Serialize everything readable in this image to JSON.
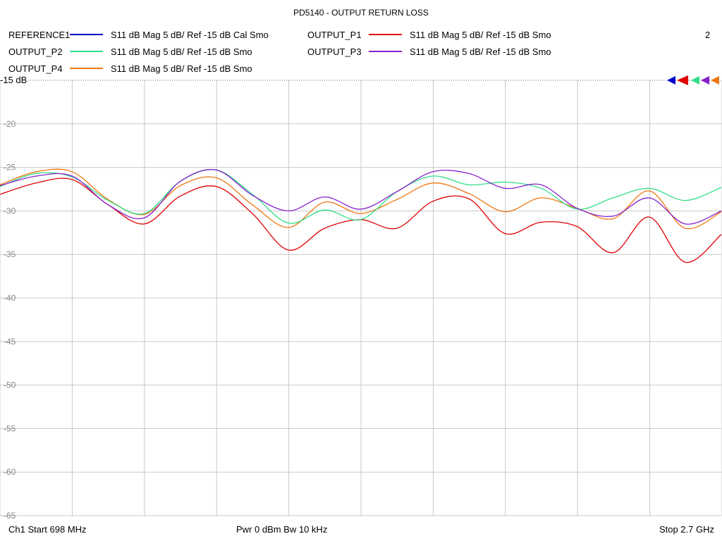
{
  "chart_data": {
    "type": "line",
    "title": "PD5140 - OUTPUT RETURN LOSS",
    "x_start": 698,
    "x_stop": 2700,
    "x_unit": "MHz",
    "ylim": [
      -65,
      -15
    ],
    "y_ticks": [
      -15,
      -20,
      -25,
      -30,
      -35,
      -40,
      -45,
      -50,
      -55,
      -60,
      -65
    ],
    "y_tick_labels": [
      "-15 dB",
      "-20",
      "-25",
      "-30",
      "-35",
      "-40",
      "-45",
      "-50",
      "-55",
      "-60",
      "-65"
    ],
    "grid": true,
    "legend_position": "top",
    "channel_number": "2",
    "x": [
      698,
      798,
      898,
      998,
      1098,
      1198,
      1298,
      1398,
      1498,
      1598,
      1698,
      1798,
      1898,
      1998,
      2098,
      2198,
      2298,
      2398,
      2498,
      2598,
      2698
    ],
    "series": [
      {
        "name": "REFERENCE1",
        "description": "S11  dB Mag  5 dB/ Ref -15 dB  Cal Smo",
        "color": "#0000cc",
        "values": null
      },
      {
        "name": "OUTPUT_P1",
        "description": "S11  dB Mag  5 dB/ Ref -15 dB  Smo",
        "color": "#e00000",
        "values": [
          -28.1,
          -26.8,
          -26.4,
          -29.3,
          -31.5,
          -28.3,
          -27.2,
          -30.3,
          -34.5,
          -32.0,
          -31.0,
          -32.0,
          -28.9,
          -28.6,
          -32.6,
          -31.3,
          -31.8,
          -34.8,
          -30.7,
          -35.9,
          -32.7
        ]
      },
      {
        "name": "OUTPUT_P2",
        "description": "S11  dB Mag  5 dB/ Ref -15 dB  Smo",
        "color": "#33dd88",
        "values": [
          -27.2,
          -25.7,
          -26.1,
          -28.8,
          -30.3,
          -26.6,
          -25.3,
          -28.1,
          -31.4,
          -29.9,
          -31.0,
          -27.8,
          -26.0,
          -27.0,
          -26.7,
          -27.4,
          -29.8,
          -28.5,
          -27.4,
          -28.8,
          -27.3
        ]
      },
      {
        "name": "OUTPUT_P3",
        "description": "S11  dB Mag  5 dB/ Ref -15 dB  Smo",
        "color": "#8822cc",
        "values": [
          -27.1,
          -26.0,
          -26.0,
          -29.3,
          -30.8,
          -26.6,
          -25.3,
          -28.2,
          -30.0,
          -28.4,
          -29.8,
          -27.8,
          -25.5,
          -25.7,
          -27.4,
          -27.0,
          -29.7,
          -30.6,
          -28.5,
          -31.5,
          -30.0
        ]
      },
      {
        "name": "OUTPUT_P4",
        "description": "S11  dB Mag  5 dB/ Ref -15 dB  Smo",
        "color": "#ee7711",
        "values": [
          -27.0,
          -25.5,
          -25.5,
          -28.7,
          -30.4,
          -27.1,
          -26.2,
          -29.3,
          -31.9,
          -29.0,
          -30.3,
          -28.7,
          -26.8,
          -28.0,
          -30.1,
          -28.5,
          -29.7,
          -30.9,
          -27.7,
          -32.0,
          -30.1
        ]
      }
    ]
  },
  "footer": {
    "start": "Ch1  Start  698 MHz",
    "power_bw": "Pwr  0 dBm  Bw  10 kHz",
    "stop": "Stop  2.7 GHz"
  }
}
